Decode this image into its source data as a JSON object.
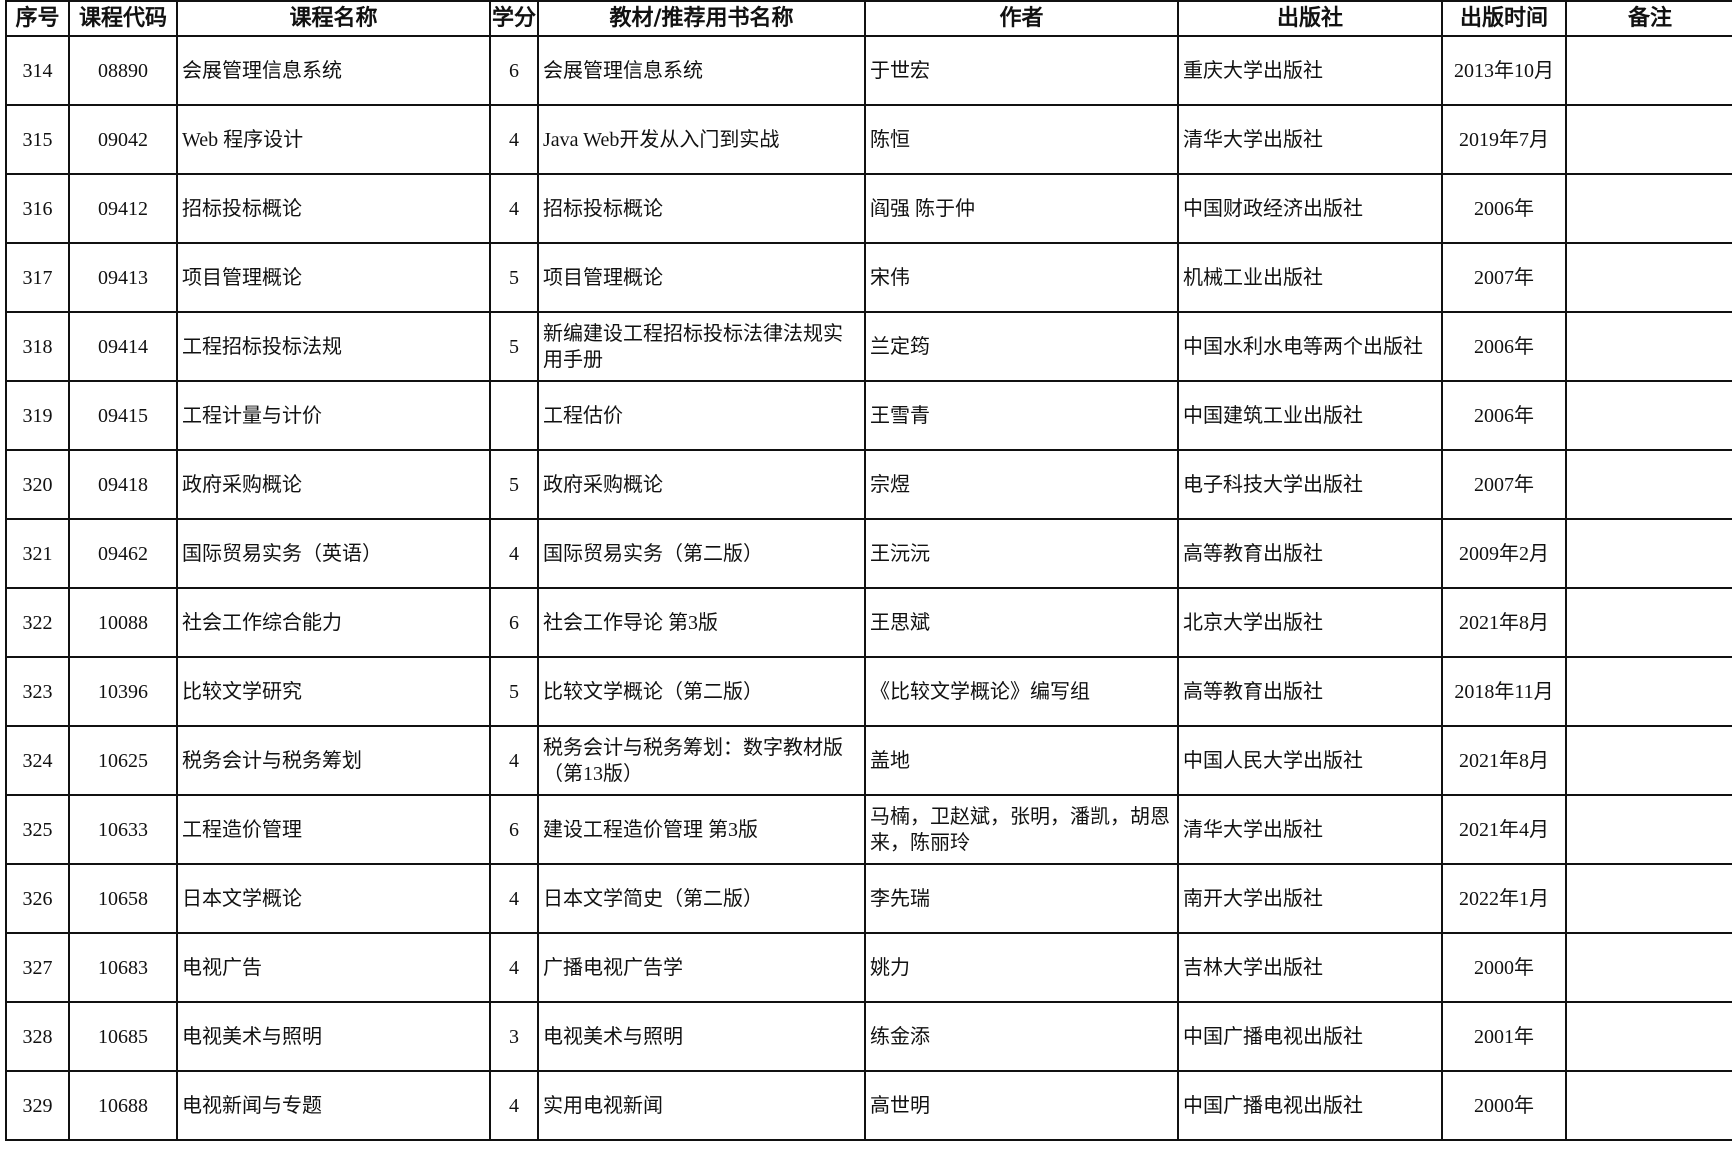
{
  "table": {
    "headers": [
      "序号",
      "课程代码",
      "课程名称",
      "学分",
      "教材/推荐用书名称",
      "作者",
      "出版社",
      "出版时间",
      "备注"
    ],
    "rows": [
      {
        "seq": "314",
        "code": "08890",
        "course": "会展管理信息系统",
        "credit": "6",
        "book": "会展管理信息系统",
        "author": "于世宏",
        "publisher": "重庆大学出版社",
        "date": "2013年10月",
        "note": ""
      },
      {
        "seq": "315",
        "code": "09042",
        "course": "Web 程序设计",
        "credit": "4",
        "book": "Java Web开发从入门到实战",
        "author": "陈恒",
        "publisher": "清华大学出版社",
        "date": "2019年7月",
        "note": ""
      },
      {
        "seq": "316",
        "code": "09412",
        "course": "招标投标概论",
        "credit": "4",
        "book": "招标投标概论",
        "author": "阎强  陈于仲",
        "publisher": "中国财政经济出版社",
        "date": "2006年",
        "note": ""
      },
      {
        "seq": "317",
        "code": "09413",
        "course": "项目管理概论",
        "credit": "5",
        "book": "项目管理概论",
        "author": "宋伟",
        "publisher": "机械工业出版社",
        "date": "2007年",
        "note": ""
      },
      {
        "seq": "318",
        "code": "09414",
        "course": "工程招标投标法规",
        "credit": "5",
        "book": "新编建设工程招标投标法律法规实用手册",
        "author": "兰定筠",
        "publisher": "中国水利水电等两个出版社",
        "date": "2006年",
        "note": ""
      },
      {
        "seq": "319",
        "code": "09415",
        "course": "工程计量与计价",
        "credit": "",
        "book": "工程估价",
        "author": "王雪青",
        "publisher": "中国建筑工业出版社",
        "date": "2006年",
        "note": ""
      },
      {
        "seq": "320",
        "code": "09418",
        "course": "政府采购概论",
        "credit": "5",
        "book": "政府采购概论",
        "author": "宗煜",
        "publisher": "电子科技大学出版社",
        "date": "2007年",
        "note": ""
      },
      {
        "seq": "321",
        "code": "09462",
        "course": "国际贸易实务（英语）",
        "credit": "4",
        "book": "国际贸易实务（第二版）",
        "author": "王沅沅",
        "publisher": "高等教育出版社",
        "date": "2009年2月",
        "note": ""
      },
      {
        "seq": "322",
        "code": "10088",
        "course": "社会工作综合能力",
        "credit": "6",
        "book": "社会工作导论  第3版",
        "author": "王思斌",
        "publisher": "北京大学出版社",
        "date": "2021年8月",
        "note": ""
      },
      {
        "seq": "323",
        "code": "10396",
        "course": "比较文学研究",
        "credit": "5",
        "book": "比较文学概论（第二版）",
        "author": "《比较文学概论》编写组",
        "publisher": "高等教育出版社",
        "date": "2018年11月",
        "note": ""
      },
      {
        "seq": "324",
        "code": "10625",
        "course": "税务会计与税务筹划",
        "credit": "4",
        "book": "税务会计与税务筹划：数字教材版（第13版）",
        "author": "盖地",
        "publisher": "中国人民大学出版社",
        "date": "2021年8月",
        "note": ""
      },
      {
        "seq": "325",
        "code": "10633",
        "course": "工程造价管理",
        "credit": "6",
        "book": "建设工程造价管理  第3版",
        "author": "马楠，卫赵斌，张明，潘凯，胡恩来，陈丽玲",
        "publisher": "清华大学出版社",
        "date": "2021年4月",
        "note": ""
      },
      {
        "seq": "326",
        "code": "10658",
        "course": "日本文学概论",
        "credit": "4",
        "book": "日本文学简史（第二版）",
        "author": "李先瑞",
        "publisher": "南开大学出版社",
        "date": "2022年1月",
        "note": ""
      },
      {
        "seq": "327",
        "code": "10683",
        "course": "电视广告",
        "credit": "4",
        "book": "广播电视广告学",
        "author": "姚力",
        "publisher": "吉林大学出版社",
        "date": "2000年",
        "note": ""
      },
      {
        "seq": "328",
        "code": "10685",
        "course": "电视美术与照明",
        "credit": "3",
        "book": "电视美术与照明",
        "author": "练金添",
        "publisher": "中国广播电视出版社",
        "date": "2001年",
        "note": ""
      },
      {
        "seq": "329",
        "code": "10688",
        "course": "电视新闻与专题",
        "credit": "4",
        "book": "实用电视新闻",
        "author": "高世明",
        "publisher": "中国广播电视出版社",
        "date": "2000年",
        "note": ""
      }
    ]
  }
}
